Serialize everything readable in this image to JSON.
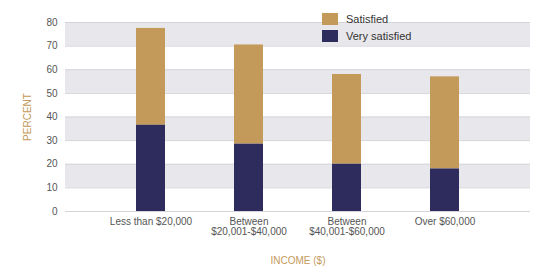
{
  "chart_data": {
    "type": "bar",
    "stacked": true,
    "categories": [
      "Less than $20,000",
      "Between $20,001-$40,000",
      "Between $40,001-$60,000",
      "Over $60,000"
    ],
    "series": [
      {
        "name": "Satisfied",
        "color": "#c49a5a",
        "values": [
          41,
          42,
          38,
          39
        ]
      },
      {
        "name": "Very satisfied",
        "color": "#2e2c5c",
        "values": [
          36.5,
          28.5,
          20,
          18
        ]
      }
    ],
    "xlabel": "INCOME ($)",
    "ylabel": "PERCENT",
    "ylim": [
      0,
      80
    ],
    "yticks": [
      0,
      10,
      20,
      30,
      40,
      50,
      60,
      70,
      80
    ],
    "grid": true,
    "legend": "top-right"
  }
}
